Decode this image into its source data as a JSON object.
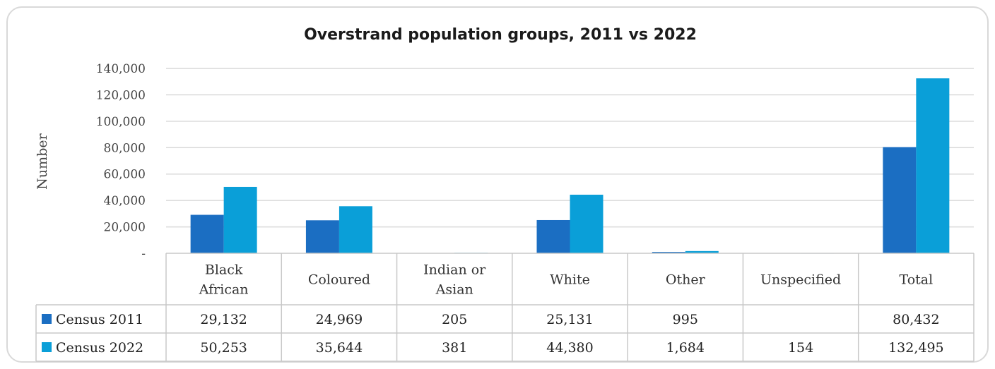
{
  "chart_data": {
    "type": "bar",
    "title": "Overstrand population groups, 2011 vs 2022",
    "ylabel": "Number",
    "ylim": [
      0,
      140000
    ],
    "yticks": [
      0,
      20000,
      40000,
      60000,
      80000,
      100000,
      120000,
      140000
    ],
    "ytick_labels": [
      "-",
      "20,000",
      "40,000",
      "60,000",
      "80,000",
      "100,000",
      "120,000",
      "140,000"
    ],
    "grid": true,
    "legend": "data-table",
    "categories": [
      [
        "Black",
        "African"
      ],
      [
        "Coloured"
      ],
      [
        "Indian or",
        "Asian"
      ],
      [
        "White"
      ],
      [
        "Other"
      ],
      [
        "Unspecified"
      ],
      [
        "Total"
      ]
    ],
    "series": [
      {
        "name": "Census 2011",
        "color": "#1b6ec2",
        "values": [
          29132,
          24969,
          205,
          25131,
          995,
          null,
          80432
        ],
        "labels": [
          "29,132",
          "24,969",
          "205",
          "25,131",
          "995",
          "",
          "80,432"
        ]
      },
      {
        "name": "Census 2022",
        "color": "#0a9fd8",
        "values": [
          50253,
          35644,
          381,
          44380,
          1684,
          154,
          132495
        ],
        "labels": [
          "50,253",
          "35,644",
          "381",
          "44,380",
          "1,684",
          "154",
          "132,495"
        ]
      }
    ]
  }
}
